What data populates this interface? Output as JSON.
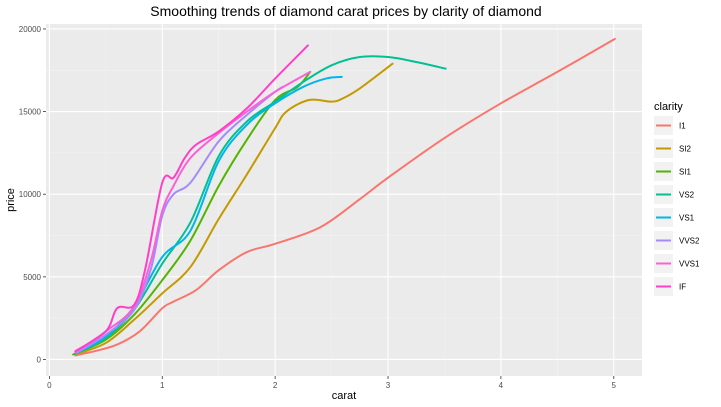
{
  "chart_data": {
    "type": "line",
    "title": "Smoothing trends of diamond carat prices by clarity of diamond",
    "xlabel": "carat",
    "ylabel": "price",
    "xlim": [
      -0.03,
      5.25
    ],
    "ylim": [
      -1000,
      20300
    ],
    "x_ticks": [
      0,
      1,
      2,
      3,
      4,
      5
    ],
    "y_ticks": [
      0,
      5000,
      10000,
      15000,
      20000
    ],
    "grid": true,
    "legend": {
      "title": "clarity",
      "position": "right"
    },
    "series": [
      {
        "name": "I1",
        "color": "#F8766D",
        "x": [
          0.23,
          0.4,
          0.6,
          0.8,
          1.0,
          1.1,
          1.3,
          1.5,
          1.75,
          2.0,
          2.4,
          2.75,
          3.0,
          3.5,
          4.0,
          4.5,
          5.01
        ],
        "y": [
          250,
          500,
          900,
          1700,
          3100,
          3500,
          4200,
          5400,
          6500,
          7000,
          8000,
          9700,
          11000,
          13400,
          15500,
          17400,
          19400
        ]
      },
      {
        "name": "SI2",
        "color": "#C49A00",
        "x": [
          0.23,
          0.5,
          0.75,
          1.0,
          1.25,
          1.5,
          1.75,
          2.0,
          2.1,
          2.3,
          2.5,
          2.6,
          2.75,
          3.04
        ],
        "y": [
          300,
          1000,
          2400,
          4000,
          5600,
          8500,
          11200,
          14000,
          15000,
          15700,
          15600,
          15800,
          16400,
          17900
        ]
      },
      {
        "name": "SI1",
        "color": "#53B400",
        "x": [
          0.21,
          0.5,
          0.75,
          1.0,
          1.25,
          1.5,
          1.75,
          2.0,
          2.2,
          2.31
        ],
        "y": [
          300,
          1200,
          2700,
          4800,
          7200,
          10500,
          13300,
          15700,
          16500,
          17400
        ]
      },
      {
        "name": "VS2",
        "color": "#00C094",
        "x": [
          0.23,
          0.5,
          0.75,
          1.0,
          1.25,
          1.5,
          1.75,
          2.0,
          2.25,
          2.5,
          2.75,
          3.0,
          3.25,
          3.51
        ],
        "y": [
          350,
          1300,
          3000,
          5800,
          8300,
          12300,
          14400,
          15600,
          16800,
          17800,
          18300,
          18300,
          18000,
          17600
        ]
      },
      {
        "name": "VS1",
        "color": "#00B6EB",
        "x": [
          0.23,
          0.5,
          0.75,
          1.0,
          1.25,
          1.5,
          1.75,
          2.0,
          2.25,
          2.45,
          2.59
        ],
        "y": [
          350,
          1400,
          3200,
          6200,
          7800,
          12000,
          14200,
          15500,
          16500,
          17000,
          17100
        ]
      },
      {
        "name": "VVS2",
        "color": "#A58AFF",
        "x": [
          0.24,
          0.5,
          0.75,
          0.9,
          1.0,
          1.1,
          1.25,
          1.5,
          1.75,
          2.0,
          2.07
        ],
        "y": [
          400,
          1500,
          3000,
          5500,
          8700,
          10000,
          10700,
          13200,
          14800,
          16200,
          16500
        ]
      },
      {
        "name": "VVS1",
        "color": "#FB61D7",
        "x": [
          0.23,
          0.5,
          0.75,
          0.9,
          1.0,
          1.1,
          1.25,
          1.5,
          1.75,
          2.0,
          2.31
        ],
        "y": [
          450,
          1700,
          3200,
          6000,
          9000,
          10500,
          12200,
          13700,
          15000,
          16200,
          17400
        ]
      },
      {
        "name": "IF",
        "color": "#FF3FC8",
        "x": [
          0.23,
          0.5,
          0.6,
          0.75,
          0.85,
          1.0,
          1.1,
          1.2,
          1.3,
          1.5,
          1.75,
          2.0,
          2.29
        ],
        "y": [
          500,
          1700,
          3100,
          3300,
          5500,
          10700,
          11000,
          12200,
          13000,
          13800,
          15200,
          17000,
          19000
        ]
      }
    ]
  }
}
